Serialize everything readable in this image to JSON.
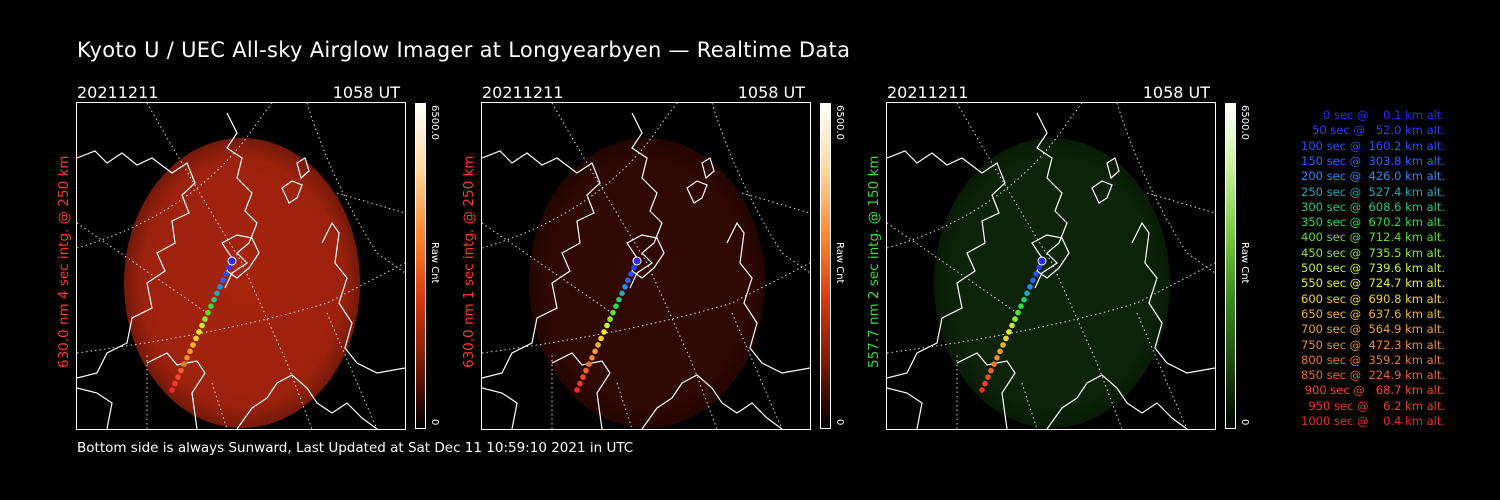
{
  "title": "Kyoto U / UEC All-sky Airglow Imager at Longyearbyen — Realtime Data",
  "footer": "Bottom side is always Sunward, Last Updated at Sat Dec 11 10:59:10 2021 in UTC",
  "panels": [
    {
      "date": "20211211",
      "time": "1058 UT",
      "label": "630.0 nm 4 sec intg. @ 250 km",
      "label_color": "#ff3b2a",
      "cbar_max": "6500.0",
      "cbar_min": "0",
      "cbar_unit": "Raw Cnt",
      "glow": "#c22a10",
      "glow_intensity": 0.85
    },
    {
      "date": "20211211",
      "time": "1058 UT",
      "label": "630.0 nm 1 sec intg. @ 250 km",
      "label_color": "#ff3b2a",
      "cbar_max": "6500.0",
      "cbar_min": "0",
      "cbar_unit": "Raw Cnt",
      "glow": "#5a0e06",
      "glow_intensity": 0.55
    },
    {
      "date": "20211211",
      "time": "1058 UT",
      "label": "557.7 nm 2 sec intg. @ 150 km",
      "label_color": "#3ddc3d",
      "cbar_max": "6500.0",
      "cbar_min": "0",
      "cbar_unit": "Raw Cnt",
      "glow": "#1a4a14",
      "glow_intensity": 0.5
    }
  ],
  "legend": [
    {
      "text": "0 sec @    0.1 km alt.",
      "color": "#2a2aff"
    },
    {
      "text": "50 sec @   52.0 km alt.",
      "color": "#2f3bff"
    },
    {
      "text": "100 sec @  160.2 km alt.",
      "color": "#2a50ff"
    },
    {
      "text": "150 sec @  303.8 km alt.",
      "color": "#2a64ff"
    },
    {
      "text": "200 sec @  426.0 km alt.",
      "color": "#2a8aff"
    },
    {
      "text": "250 sec @  527.4 km alt.",
      "color": "#20a8b8"
    },
    {
      "text": "300 sec @  608.6 km alt.",
      "color": "#22c878"
    },
    {
      "text": "350 sec @  670.2 km alt.",
      "color": "#30dc40"
    },
    {
      "text": "400 sec @  712.4 km alt.",
      "color": "#5ae02a"
    },
    {
      "text": "450 sec @  735.5 km alt.",
      "color": "#8ee82a"
    },
    {
      "text": "500 sec @  739.6 km alt.",
      "color": "#c8f02a"
    },
    {
      "text": "550 sec @  724.7 km alt.",
      "color": "#ecec2a"
    },
    {
      "text": "600 sec @  690.8 km alt.",
      "color": "#f0d22a"
    },
    {
      "text": "650 sec @  637.6 km alt.",
      "color": "#f0b42a"
    },
    {
      "text": "700 sec @  564.9 km alt.",
      "color": "#f0a02a"
    },
    {
      "text": "750 sec @  472.3 km alt.",
      "color": "#f08c2a"
    },
    {
      "text": "800 sec @  359.2 km alt.",
      "color": "#f0782a"
    },
    {
      "text": "850 sec @  224.9 km alt.",
      "color": "#f0642a"
    },
    {
      "text": "900 sec @   68.7 km alt.",
      "color": "#f04a2a"
    },
    {
      "text": "950 sec @    6.2 km alt.",
      "color": "#f03a2a"
    },
    {
      "text": "1000 sec @    0.4 km alt.",
      "color": "#f02a2a"
    }
  ]
}
